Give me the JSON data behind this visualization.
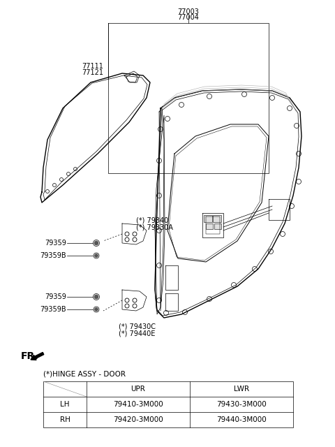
{
  "bg_color": "#ffffff",
  "line_color": "#000000",
  "text_color": "#000000",
  "label_77003": "77003",
  "label_77004": "77004",
  "label_77111": "77111",
  "label_77121": "77121",
  "label_79340": "(*) 79340",
  "label_79330A": "(*) 79330A",
  "label_79359_u": "79359",
  "label_79359B_u": "79359B",
  "label_79359_l": "79359",
  "label_79359B_l": "79359B",
  "label_79430C": "(*) 79430C",
  "label_79440E": "(*) 79440E",
  "label_FR": "FR.",
  "table_title": "(*)HINGE ASSY - DOOR",
  "table_col_headers": [
    "UPR",
    "LWR"
  ],
  "table_rows": [
    [
      "LH",
      "79410-3M000",
      "79430-3M000"
    ],
    [
      "RH",
      "79420-3M000",
      "79440-3M000"
    ]
  ],
  "font_size_label": 7,
  "font_size_table": 7.5,
  "font_size_fr": 10
}
